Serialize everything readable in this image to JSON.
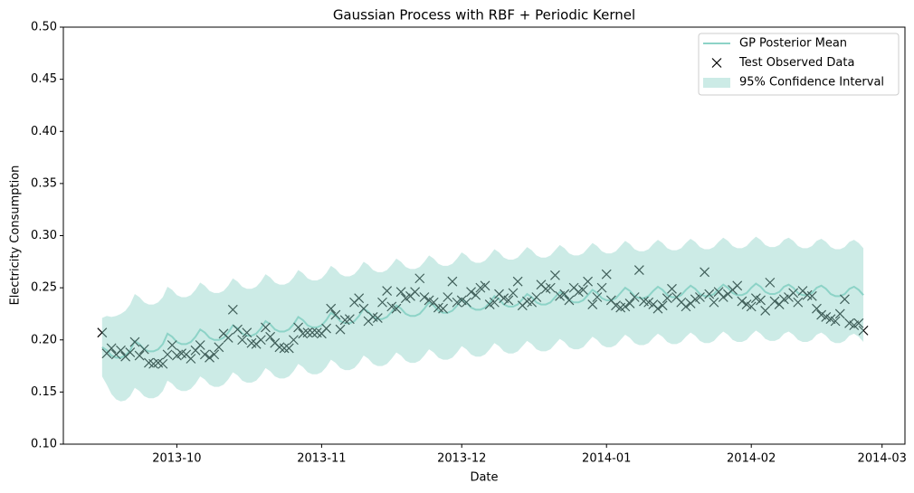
{
  "chart_data": {
    "type": "line",
    "title": "Gaussian Process with RBF + Periodic Kernel",
    "xlabel": "Date",
    "ylabel": "Electricity Consumption",
    "xlim": [
      -8.3,
      171.9
    ],
    "xticks": [
      {
        "value": 16,
        "label": "2013-10"
      },
      {
        "value": 47,
        "label": "2013-11"
      },
      {
        "value": 77,
        "label": "2013-12"
      },
      {
        "value": 108,
        "label": "2014-01"
      },
      {
        "value": 139,
        "label": "2014-02"
      },
      {
        "value": 167,
        "label": "2014-03"
      }
    ],
    "ylim": [
      0.1,
      0.5
    ],
    "yticks": [
      {
        "value": 0.1,
        "label": "0.10"
      },
      0.15,
      {
        "value": 0.2,
        "label": "0.20"
      },
      0.25,
      {
        "value": 0.3,
        "label": "0.30"
      },
      0.35,
      {
        "value": 0.4,
        "label": "0.40"
      },
      0.45,
      {
        "value": 0.5,
        "label": "0.50"
      }
    ],
    "legend": "upper right",
    "series": [
      {
        "name": "GP Posterior Mean",
        "type": "line",
        "color": "#8dd3c7",
        "values": [
          0.193,
          0.19,
          0.185,
          0.183,
          0.183,
          0.185,
          0.19,
          0.199,
          0.196,
          0.191,
          0.189,
          0.189,
          0.191,
          0.196,
          0.206,
          0.203,
          0.198,
          0.196,
          0.196,
          0.198,
          0.203,
          0.21,
          0.207,
          0.202,
          0.2,
          0.2,
          0.202,
          0.207,
          0.214,
          0.211,
          0.206,
          0.204,
          0.204,
          0.206,
          0.211,
          0.218,
          0.215,
          0.21,
          0.208,
          0.208,
          0.21,
          0.215,
          0.222,
          0.219,
          0.214,
          0.212,
          0.212,
          0.214,
          0.219,
          0.226,
          0.223,
          0.218,
          0.216,
          0.216,
          0.218,
          0.223,
          0.23,
          0.227,
          0.222,
          0.22,
          0.22,
          0.222,
          0.227,
          0.233,
          0.23,
          0.225,
          0.223,
          0.223,
          0.225,
          0.23,
          0.236,
          0.233,
          0.228,
          0.226,
          0.226,
          0.228,
          0.233,
          0.239,
          0.236,
          0.231,
          0.229,
          0.229,
          0.231,
          0.236,
          0.242,
          0.239,
          0.234,
          0.232,
          0.232,
          0.234,
          0.239,
          0.244,
          0.241,
          0.236,
          0.234,
          0.234,
          0.236,
          0.241,
          0.246,
          0.243,
          0.238,
          0.236,
          0.236,
          0.238,
          0.243,
          0.248,
          0.245,
          0.24,
          0.238,
          0.238,
          0.24,
          0.245,
          0.25,
          0.247,
          0.242,
          0.24,
          0.24,
          0.242,
          0.247,
          0.251,
          0.248,
          0.243,
          0.241,
          0.241,
          0.243,
          0.248,
          0.252,
          0.249,
          0.244,
          0.242,
          0.242,
          0.244,
          0.249,
          0.253,
          0.25,
          0.245,
          0.243,
          0.243,
          0.245,
          0.25,
          0.254,
          0.251,
          0.246,
          0.244,
          0.244,
          0.246,
          0.251,
          0.253,
          0.25,
          0.245,
          0.243,
          0.243,
          0.245,
          0.25,
          0.252,
          0.249,
          0.244,
          0.242,
          0.242,
          0.244,
          0.249,
          0.251,
          0.248,
          0.243
        ]
      },
      {
        "name": "Test Observed Data",
        "type": "scatter",
        "color": "#000000",
        "values": [
          0.207,
          0.187,
          0.192,
          0.186,
          0.19,
          0.184,
          0.188,
          0.198,
          0.185,
          0.191,
          0.178,
          0.177,
          0.178,
          0.177,
          0.186,
          0.195,
          0.185,
          0.187,
          0.186,
          0.182,
          0.19,
          0.195,
          0.186,
          0.183,
          0.186,
          0.193,
          0.206,
          0.202,
          0.229,
          0.21,
          0.2,
          0.207,
          0.197,
          0.196,
          0.2,
          0.212,
          0.203,
          0.197,
          0.193,
          0.192,
          0.192,
          0.2,
          0.212,
          0.206,
          0.207,
          0.207,
          0.207,
          0.206,
          0.211,
          0.23,
          0.224,
          0.21,
          0.219,
          0.22,
          0.236,
          0.24,
          0.23,
          0.218,
          0.222,
          0.221,
          0.236,
          0.247,
          0.232,
          0.23,
          0.246,
          0.24,
          0.242,
          0.246,
          0.259,
          0.241,
          0.238,
          0.236,
          0.231,
          0.23,
          0.241,
          0.256,
          0.236,
          0.238,
          0.236,
          0.246,
          0.243,
          0.25,
          0.252,
          0.234,
          0.236,
          0.244,
          0.24,
          0.238,
          0.245,
          0.256,
          0.233,
          0.237,
          0.236,
          0.241,
          0.253,
          0.249,
          0.25,
          0.262,
          0.242,
          0.244,
          0.238,
          0.25,
          0.246,
          0.248,
          0.256,
          0.234,
          0.241,
          0.25,
          0.263,
          0.238,
          0.233,
          0.231,
          0.232,
          0.235,
          0.241,
          0.267,
          0.237,
          0.236,
          0.234,
          0.23,
          0.233,
          0.24,
          0.249,
          0.241,
          0.236,
          0.232,
          0.235,
          0.239,
          0.241,
          0.265,
          0.244,
          0.236,
          0.246,
          0.241,
          0.244,
          0.248,
          0.252,
          0.237,
          0.234,
          0.232,
          0.24,
          0.238,
          0.228,
          0.255,
          0.237,
          0.234,
          0.239,
          0.241,
          0.245,
          0.236,
          0.247,
          0.243,
          0.242,
          0.23,
          0.224,
          0.222,
          0.22,
          0.218,
          0.225,
          0.239,
          0.216,
          0.214,
          0.216,
          0.209
        ]
      },
      {
        "name": "95% Confidence Interval",
        "type": "band",
        "color": "#8dd3c7",
        "upper": [
          0.221,
          0.223,
          0.222,
          0.223,
          0.225,
          0.228,
          0.234,
          0.244,
          0.241,
          0.236,
          0.234,
          0.234,
          0.236,
          0.241,
          0.251,
          0.248,
          0.243,
          0.241,
          0.241,
          0.243,
          0.248,
          0.255,
          0.252,
          0.247,
          0.245,
          0.245,
          0.247,
          0.252,
          0.259,
          0.256,
          0.251,
          0.249,
          0.249,
          0.251,
          0.256,
          0.263,
          0.26,
          0.255,
          0.253,
          0.253,
          0.255,
          0.26,
          0.267,
          0.264,
          0.259,
          0.257,
          0.257,
          0.259,
          0.264,
          0.271,
          0.268,
          0.263,
          0.261,
          0.261,
          0.263,
          0.268,
          0.275,
          0.272,
          0.267,
          0.265,
          0.265,
          0.267,
          0.272,
          0.278,
          0.275,
          0.27,
          0.268,
          0.268,
          0.27,
          0.275,
          0.281,
          0.278,
          0.273,
          0.271,
          0.271,
          0.273,
          0.278,
          0.284,
          0.281,
          0.276,
          0.274,
          0.274,
          0.276,
          0.281,
          0.287,
          0.284,
          0.279,
          0.277,
          0.277,
          0.279,
          0.284,
          0.289,
          0.286,
          0.281,
          0.279,
          0.279,
          0.281,
          0.286,
          0.291,
          0.288,
          0.283,
          0.281,
          0.281,
          0.283,
          0.288,
          0.293,
          0.29,
          0.285,
          0.283,
          0.283,
          0.285,
          0.29,
          0.295,
          0.292,
          0.287,
          0.285,
          0.285,
          0.287,
          0.292,
          0.296,
          0.293,
          0.288,
          0.286,
          0.286,
          0.288,
          0.293,
          0.297,
          0.294,
          0.289,
          0.287,
          0.287,
          0.289,
          0.294,
          0.298,
          0.295,
          0.29,
          0.288,
          0.288,
          0.29,
          0.295,
          0.299,
          0.296,
          0.291,
          0.289,
          0.289,
          0.291,
          0.296,
          0.298,
          0.295,
          0.29,
          0.288,
          0.288,
          0.29,
          0.295,
          0.297,
          0.294,
          0.289,
          0.287,
          0.287,
          0.289,
          0.294,
          0.296,
          0.293,
          0.288
        ],
        "lower": [
          0.165,
          0.157,
          0.148,
          0.143,
          0.141,
          0.142,
          0.146,
          0.154,
          0.151,
          0.146,
          0.144,
          0.144,
          0.146,
          0.151,
          0.161,
          0.158,
          0.153,
          0.151,
          0.151,
          0.153,
          0.158,
          0.165,
          0.162,
          0.157,
          0.155,
          0.155,
          0.157,
          0.162,
          0.169,
          0.166,
          0.161,
          0.159,
          0.159,
          0.161,
          0.166,
          0.173,
          0.17,
          0.165,
          0.163,
          0.163,
          0.165,
          0.17,
          0.177,
          0.174,
          0.169,
          0.167,
          0.167,
          0.169,
          0.174,
          0.181,
          0.178,
          0.173,
          0.171,
          0.171,
          0.173,
          0.178,
          0.185,
          0.182,
          0.177,
          0.175,
          0.175,
          0.177,
          0.182,
          0.188,
          0.185,
          0.18,
          0.178,
          0.178,
          0.18,
          0.185,
          0.191,
          0.188,
          0.183,
          0.181,
          0.181,
          0.183,
          0.188,
          0.194,
          0.191,
          0.186,
          0.184,
          0.184,
          0.186,
          0.191,
          0.197,
          0.194,
          0.189,
          0.187,
          0.187,
          0.189,
          0.194,
          0.199,
          0.196,
          0.191,
          0.189,
          0.189,
          0.191,
          0.196,
          0.201,
          0.198,
          0.193,
          0.191,
          0.191,
          0.193,
          0.198,
          0.203,
          0.2,
          0.195,
          0.193,
          0.193,
          0.195,
          0.2,
          0.205,
          0.202,
          0.197,
          0.195,
          0.195,
          0.197,
          0.202,
          0.206,
          0.203,
          0.198,
          0.196,
          0.196,
          0.198,
          0.203,
          0.207,
          0.204,
          0.199,
          0.197,
          0.197,
          0.199,
          0.204,
          0.208,
          0.205,
          0.2,
          0.198,
          0.198,
          0.2,
          0.205,
          0.209,
          0.206,
          0.201,
          0.199,
          0.199,
          0.201,
          0.206,
          0.208,
          0.205,
          0.2,
          0.198,
          0.198,
          0.2,
          0.205,
          0.207,
          0.204,
          0.199,
          0.197,
          0.197,
          0.199,
          0.204,
          0.206,
          0.203,
          0.198
        ]
      }
    ]
  }
}
